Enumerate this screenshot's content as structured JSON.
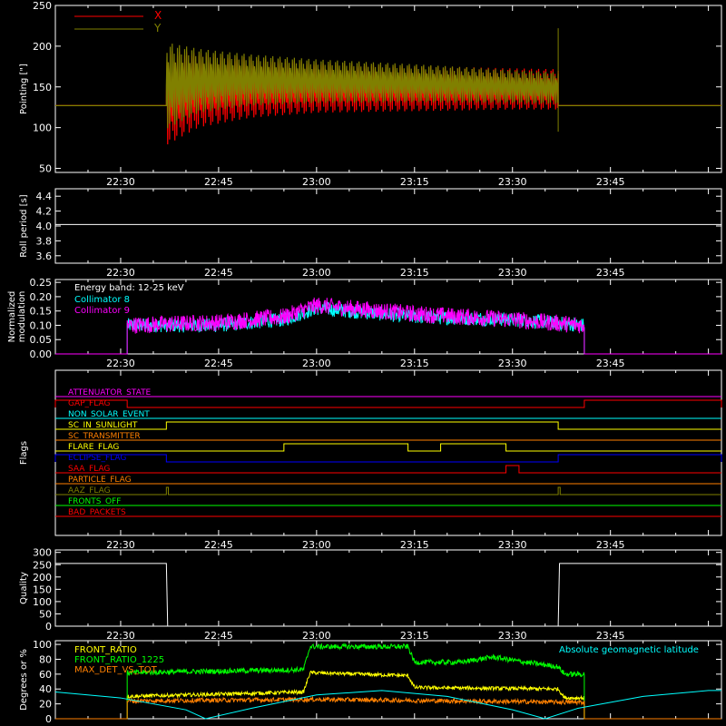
{
  "chart_data": [
    {
      "type": "line",
      "ylabel": "Pointing [\"]",
      "ylim": [
        45,
        250
      ],
      "yticks": [
        50,
        100,
        150,
        200,
        250
      ],
      "x_range": [
        "22:20",
        "24:02"
      ],
      "xticks": [
        "22:30",
        "22:45",
        "23:00",
        "23:15",
        "23:30",
        "23:45"
      ],
      "legend": {
        "placement": "top-left",
        "entries": [
          {
            "label": "X",
            "color": "#ff0000"
          },
          {
            "label": "Y",
            "color": "#808000"
          }
        ]
      },
      "series": [
        {
          "name": "X",
          "color": "#ff0000",
          "baseline": 127,
          "active_start": "22:37",
          "active_end": "23:37",
          "envelope_x": [
            "22:37",
            "22:42",
            "22:50",
            "23:00",
            "23:15",
            "23:30",
            "23:37"
          ],
          "envelope_low": [
            78,
            100,
            112,
            118,
            120,
            122,
            122
          ],
          "envelope_high": [
            195,
            192,
            186,
            180,
            176,
            173,
            172
          ]
        },
        {
          "name": "Y",
          "color": "#808000",
          "baseline": 127,
          "active_start": "22:37",
          "active_end": "23:37",
          "envelope_x": [
            "22:37",
            "22:42",
            "22:50",
            "23:00",
            "23:15",
            "23:30",
            "23:37"
          ],
          "envelope_low": [
            98,
            118,
            127,
            130,
            131,
            130,
            129
          ],
          "envelope_high": [
            205,
            197,
            190,
            184,
            178,
            171,
            168
          ]
        }
      ]
    },
    {
      "type": "line",
      "ylabel": "Roll period [s]",
      "ylim": [
        3.5,
        4.5
      ],
      "yticks": [
        3.6,
        3.8,
        4.0,
        4.2,
        4.4
      ],
      "xticks": [
        "22:30",
        "22:45",
        "23:00",
        "23:15",
        "23:30",
        "23:45"
      ],
      "series": [
        {
          "color": "#ffffff",
          "value": 4.02,
          "x_start": "22:20",
          "x_end": "24:02"
        }
      ]
    },
    {
      "type": "line",
      "ylabel": "Normalized modulation",
      "ylim": [
        0.0,
        0.26
      ],
      "yticks": [
        0.0,
        0.05,
        0.1,
        0.15,
        0.2,
        0.25
      ],
      "xticks": [
        "22:30",
        "22:45",
        "23:00",
        "23:15",
        "23:30",
        "23:45"
      ],
      "annotation": "Energy band: 12-25 keV",
      "legend": {
        "placement": "top-left",
        "entries": [
          {
            "label": "Collimator 8",
            "color": "#00ffff"
          },
          {
            "label": "Collimator 9",
            "color": "#ff00ff"
          }
        ]
      },
      "series": [
        {
          "name": "Collimator 8",
          "color": "#00ffff",
          "x_start": "22:31",
          "x_end": "23:41",
          "trend_x": [
            "22:31",
            "22:45",
            "22:55",
            "23:00",
            "23:05",
            "23:15",
            "23:30",
            "23:41"
          ],
          "trend_y": [
            0.1,
            0.1,
            0.12,
            0.16,
            0.15,
            0.13,
            0.12,
            0.1
          ],
          "noise": 0.025
        },
        {
          "name": "Collimator 9",
          "color": "#ff00ff",
          "x_start": "22:31",
          "x_end": "23:41",
          "trend_x": [
            "22:31",
            "22:45",
            "22:55",
            "23:00",
            "23:05",
            "23:15",
            "23:30",
            "23:41"
          ],
          "trend_y": [
            0.1,
            0.11,
            0.13,
            0.17,
            0.16,
            0.14,
            0.12,
            0.1
          ],
          "noise": 0.03
        }
      ]
    },
    {
      "type": "line",
      "ylabel": "Flags",
      "xticks": [
        "22:30",
        "22:45",
        "23:00",
        "23:15",
        "23:30",
        "23:45"
      ],
      "flags": [
        {
          "name": "ATTENUATOR_STATE",
          "color": "#ff00ff",
          "on": []
        },
        {
          "name": "GAP_FLAG",
          "color": "#ff0000",
          "on": [
            [
              "22:20",
              "22:31"
            ],
            [
              "23:41",
              "24:02"
            ]
          ]
        },
        {
          "name": "NON_SOLAR_EVENT",
          "color": "#00ffff",
          "on": []
        },
        {
          "name": "SC_IN_SUNLIGHT",
          "color": "#ffff00",
          "on": [
            [
              "22:37",
              "23:37"
            ]
          ]
        },
        {
          "name": "SC_TRANSMITTER",
          "color": "#ff8000",
          "on": []
        },
        {
          "name": "FLARE_FLAG",
          "color": "#ffff00",
          "on": [
            [
              "22:55",
              "23:14"
            ],
            [
              "23:19",
              "23:29"
            ]
          ]
        },
        {
          "name": "ECLIPSE_FLAG",
          "color": "#0000ff",
          "on": [
            [
              "22:20",
              "22:37"
            ],
            [
              "23:37",
              "24:02"
            ]
          ]
        },
        {
          "name": "SAA_FLAG",
          "color": "#ff0000",
          "on": [
            [
              "23:29",
              "23:31"
            ]
          ]
        },
        {
          "name": "PARTICLE_FLAG",
          "color": "#ff8000",
          "on": []
        },
        {
          "name": "AAZ_FLAG",
          "color": "#808000",
          "on": [
            [
              "22:37",
              "22:37.3"
            ],
            [
              "23:37",
              "23:37.3"
            ]
          ]
        },
        {
          "name": "FRONTS_OFF",
          "color": "#00ff00",
          "on": []
        },
        {
          "name": "BAD_PACKETS",
          "color": "#ff0000",
          "on": []
        }
      ]
    },
    {
      "type": "line",
      "ylabel": "Quality",
      "ylim": [
        0,
        310
      ],
      "yticks": [
        0,
        50,
        100,
        150,
        200,
        250,
        300
      ],
      "xticks": [
        "22:30",
        "22:45",
        "23:00",
        "23:15",
        "23:30",
        "23:45"
      ],
      "series": [
        {
          "color": "#ffffff",
          "x": [
            "22:20",
            "22:37",
            "22:37.2",
            "23:37",
            "23:37.2",
            "24:02"
          ],
          "y": [
            255,
            255,
            0,
            0,
            255,
            255
          ]
        }
      ]
    },
    {
      "type": "line",
      "ylabel": "Degrees or %",
      "ylim": [
        0,
        105
      ],
      "yticks": [
        0,
        20,
        40,
        60,
        80,
        100
      ],
      "annotation": "Absolute geomagnetic latitude",
      "legend": {
        "placement": "top-left",
        "entries": [
          {
            "label": "FRONT_RATIO",
            "color": "#ffff00"
          },
          {
            "label": "FRONT_RATIO_1225",
            "color": "#00ff00"
          },
          {
            "label": "MAX_DET_VS_TOT",
            "color": "#ff8000"
          }
        ]
      },
      "series": [
        {
          "name": "FRONT_RATIO",
          "color": "#ffff00",
          "x_start": "22:31",
          "x_end": "23:41",
          "trend_x": [
            "22:31",
            "22:45",
            "22:58",
            "22:59",
            "23:14",
            "23:15",
            "23:37",
            "23:38",
            "23:41"
          ],
          "trend_y": [
            30,
            33,
            36,
            62,
            58,
            42,
            40,
            28,
            28
          ],
          "noise": 2.5
        },
        {
          "name": "FRONT_RATIO_1225",
          "color": "#00ff00",
          "x_start": "22:31",
          "x_end": "23:41",
          "trend_x": [
            "22:31",
            "22:45",
            "22:58",
            "22:59",
            "23:14",
            "23:15",
            "23:22",
            "23:27",
            "23:32",
            "23:37",
            "23:38",
            "23:41"
          ],
          "trend_y": [
            62,
            64,
            66,
            97,
            97,
            76,
            76,
            83,
            76,
            70,
            60,
            60
          ],
          "noise": 3.5
        },
        {
          "name": "MAX_DET_VS_TOT",
          "color": "#ff8000",
          "x_start": "22:31",
          "x_end": "23:41",
          "trend_x": [
            "22:31",
            "23:00",
            "23:41"
          ],
          "trend_y": [
            24,
            26,
            22
          ],
          "noise": 3
        },
        {
          "name": "Absolute geomagnetic latitude",
          "color": "#00ffff",
          "x": [
            "22:20",
            "22:30",
            "22:40",
            "22:43",
            "22:50",
            "23:00",
            "23:10",
            "23:20",
            "23:30",
            "23:35",
            "23:40",
            "23:50",
            "24:00",
            "24:02"
          ],
          "y": [
            36,
            28,
            12,
            0,
            14,
            32,
            38,
            30,
            12,
            0,
            14,
            30,
            38,
            38
          ]
        }
      ]
    }
  ]
}
